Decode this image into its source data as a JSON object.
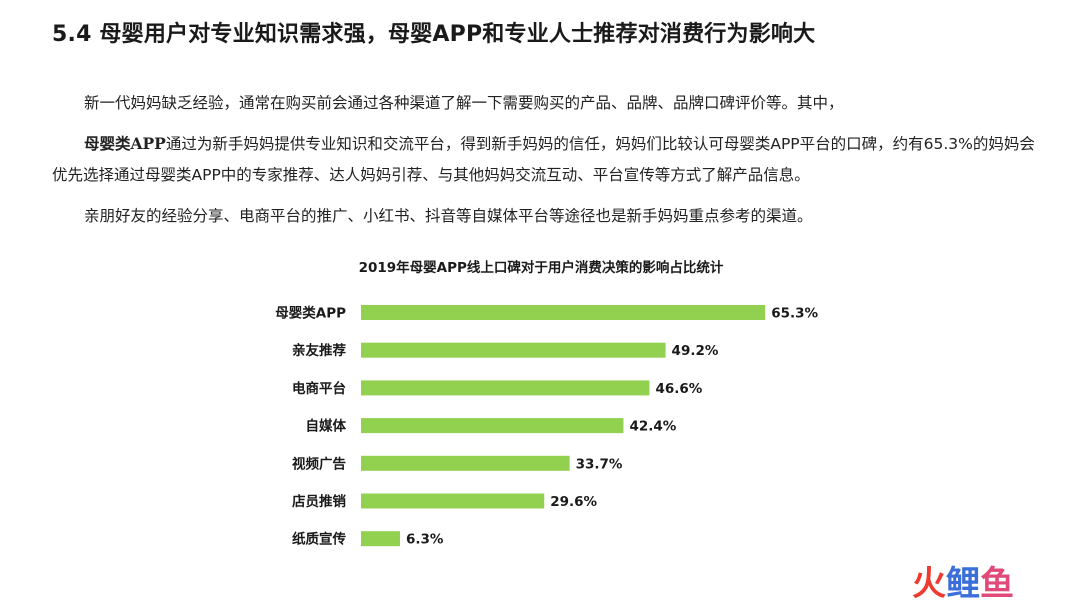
{
  "page": {
    "title": "5.4 母婴用户对专业知识需求强，母婴APP和专业人士推荐对消费行为影响大",
    "paragraph1": "新一代妈妈缺乏经验，通常在购买前会通过各种渠道了解一下需要购买的产品、品牌、品牌口碑评价等。其中，",
    "paragraph2_bold": "母婴类APP",
    "paragraph2_rest": "通过为新手妈妈提供专业知识和交流平台，得到新手妈妈的信任，妈妈们比较认可母婴类APP平台的口碑，约有65.3%的妈妈会优先选择通过母婴类APP中的专家推荐、达人妈妈引荐、与其他妈妈交流互动、平台宣传等方式了解产品信息。",
    "paragraph3": "亲朋好友的经验分享、电商平台的推广、小红书、抖音等自媒体平台等途径也是新手妈妈重点参考的渠道。"
  },
  "logo": {
    "text_chars": [
      "火",
      "鲤",
      "鱼"
    ]
  },
  "colors": {
    "bar": "#92d050",
    "text": "#1a1a1a"
  },
  "chart_data": {
    "type": "bar",
    "orientation": "horizontal",
    "title": "2019年母婴APP线上口碑对于用户消费决策的影响占比统计",
    "categories": [
      "母婴类APP",
      "亲友推荐",
      "电商平台",
      "自媒体",
      "视频广告",
      "店员推销",
      "纸质宣传"
    ],
    "values": [
      65.3,
      49.2,
      46.6,
      42.4,
      33.7,
      29.6,
      6.3
    ],
    "value_labels": [
      "65.3%",
      "49.2%",
      "46.6%",
      "42.4%",
      "33.7%",
      "29.6%",
      "6.3%"
    ],
    "xlim": [
      0,
      70
    ],
    "grid": false,
    "legend": "none"
  }
}
